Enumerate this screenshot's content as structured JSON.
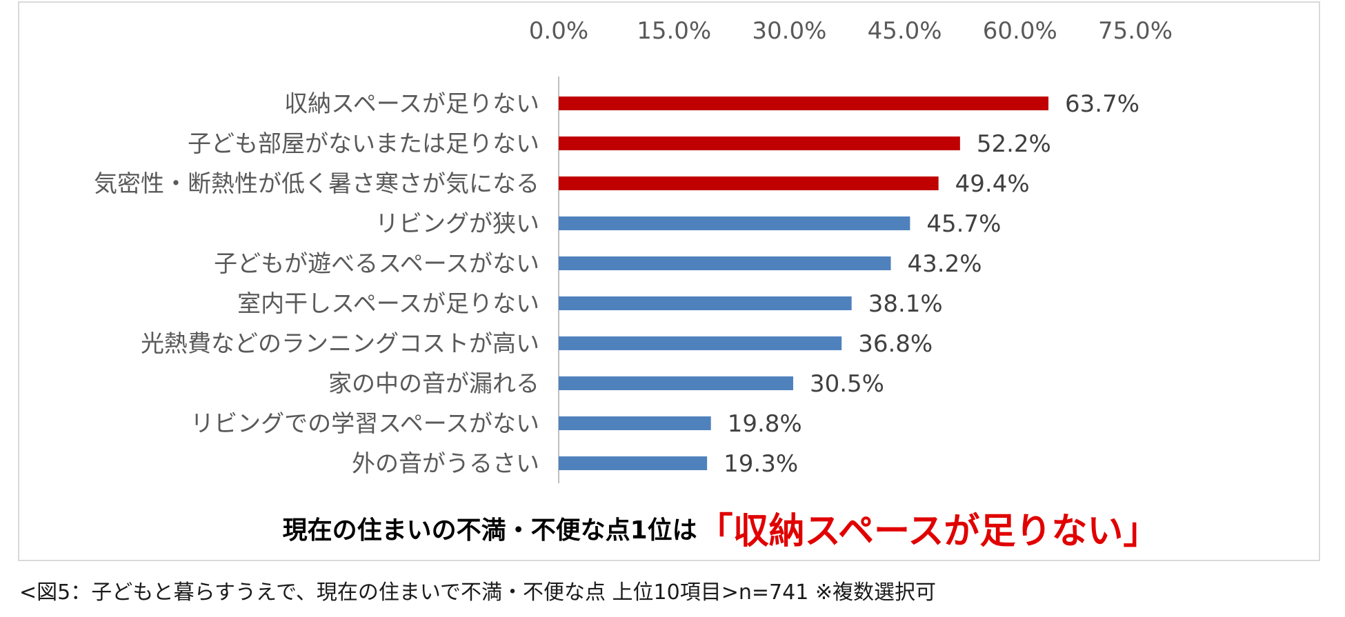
{
  "chart_data": {
    "type": "bar",
    "orientation": "horizontal",
    "categories": [
      "収納スペースが足りない",
      "子ども部屋がないまたは足りない",
      "気密性・断熱性が低く暑さ寒さが気になる",
      "リビングが狭い",
      "子どもが遊べるスペースがない",
      "室内干しスペースが足りない",
      "光熱費などのランニングコストが高い",
      "家の中の音が漏れる",
      "リビングでの学習スペースがない",
      "外の音がうるさい"
    ],
    "values": [
      63.7,
      52.2,
      49.4,
      45.7,
      43.2,
      38.1,
      36.8,
      30.5,
      19.8,
      19.3
    ],
    "value_labels": [
      "63.7%",
      "52.2%",
      "49.4%",
      "45.7%",
      "43.2%",
      "38.1%",
      "36.8%",
      "30.5%",
      "19.8%",
      "19.3%"
    ],
    "xlim": [
      0,
      75
    ],
    "xticks": [
      0,
      15,
      30,
      45,
      60,
      75
    ],
    "xtick_labels": [
      "0.0%",
      "15.0%",
      "30.0%",
      "45.0%",
      "60.0%",
      "75.0%"
    ],
    "x_axis_position": "top",
    "grid": false,
    "legend": "none",
    "bar_colors": [
      "#c00000",
      "#c00000",
      "#c00000",
      "#4f81bd",
      "#4f81bd",
      "#4f81bd",
      "#4f81bd",
      "#4f81bd",
      "#4f81bd",
      "#4f81bd"
    ],
    "title": "",
    "xlabel": "",
    "ylabel": ""
  },
  "headline": {
    "main": "現在の住まいの不満・不便な点1位は",
    "emphasis": "「収納スペースが足りない」",
    "main_color": "#000000",
    "emphasis_color": "#e00000"
  },
  "caption": "<図5：子どもと暮らすうえで、現在の住まいで不満・不便な点 上位10項目>n=741 ※複数選択可"
}
